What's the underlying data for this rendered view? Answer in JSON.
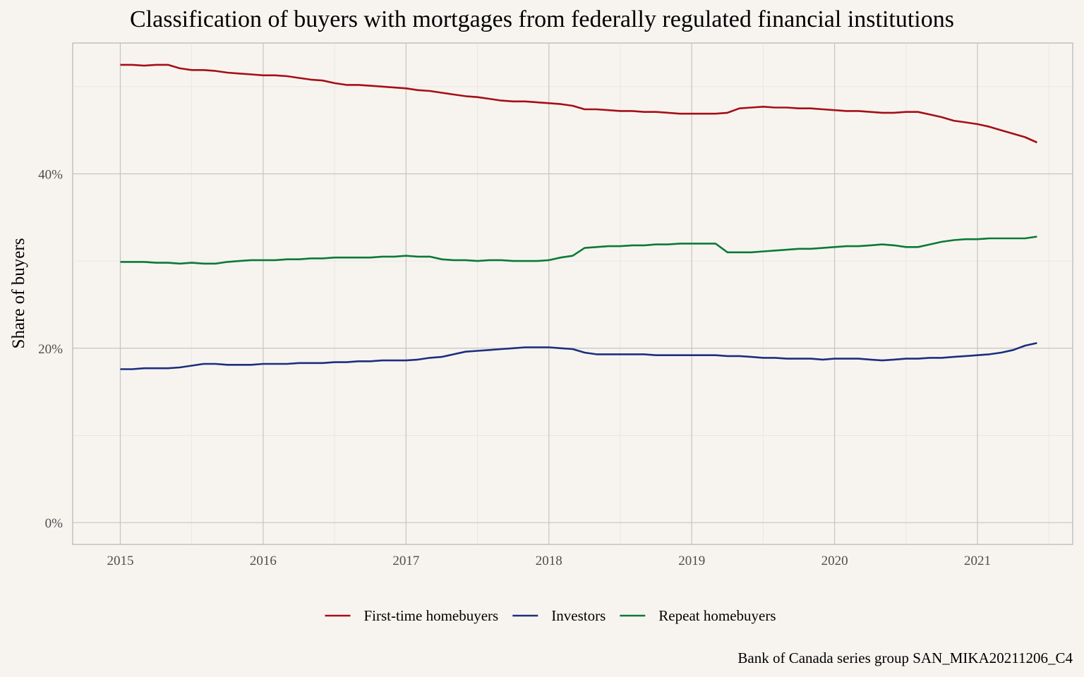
{
  "chart_data": {
    "type": "line",
    "title": "Classification of buyers with mortgages from federally regulated financial institutions",
    "xlabel": "",
    "ylabel": "Share of buyers",
    "caption": "Bank of Canada series group SAN_MIKA20211206_C4",
    "x_ticks": [
      "2015",
      "2016",
      "2017",
      "2018",
      "2019",
      "2020",
      "2021"
    ],
    "y_ticks": [
      "0%",
      "20%",
      "40%"
    ],
    "xlim": [
      "2014-09",
      "2021-09"
    ],
    "ylim": [
      -2.5,
      55.0
    ],
    "legend_position": "bottom",
    "grid": true,
    "x": [
      "2015-01",
      "2015-02",
      "2015-03",
      "2015-04",
      "2015-05",
      "2015-06",
      "2015-07",
      "2015-08",
      "2015-09",
      "2015-10",
      "2015-11",
      "2015-12",
      "2016-01",
      "2016-02",
      "2016-03",
      "2016-04",
      "2016-05",
      "2016-06",
      "2016-07",
      "2016-08",
      "2016-09",
      "2016-10",
      "2016-11",
      "2016-12",
      "2017-01",
      "2017-02",
      "2017-03",
      "2017-04",
      "2017-05",
      "2017-06",
      "2017-07",
      "2017-08",
      "2017-09",
      "2017-10",
      "2017-11",
      "2017-12",
      "2018-01",
      "2018-02",
      "2018-03",
      "2018-04",
      "2018-05",
      "2018-06",
      "2018-07",
      "2018-08",
      "2018-09",
      "2018-10",
      "2018-11",
      "2018-12",
      "2019-01",
      "2019-02",
      "2019-03",
      "2019-04",
      "2019-05",
      "2019-06",
      "2019-07",
      "2019-08",
      "2019-09",
      "2019-10",
      "2019-11",
      "2019-12",
      "2020-01",
      "2020-02",
      "2020-03",
      "2020-04",
      "2020-05",
      "2020-06",
      "2020-07",
      "2020-08",
      "2020-09",
      "2020-10",
      "2020-11",
      "2020-12",
      "2021-01",
      "2021-02",
      "2021-03",
      "2021-04",
      "2021-05",
      "2021-06"
    ],
    "series": [
      {
        "name": "First-time homebuyers",
        "color": "#a50f15",
        "values": [
          52.5,
          52.5,
          52.4,
          52.5,
          52.5,
          52.1,
          51.9,
          51.9,
          51.8,
          51.6,
          51.5,
          51.4,
          51.3,
          51.3,
          51.2,
          51.0,
          50.8,
          50.7,
          50.4,
          50.2,
          50.2,
          50.1,
          50.0,
          49.9,
          49.8,
          49.6,
          49.5,
          49.3,
          49.1,
          48.9,
          48.8,
          48.6,
          48.4,
          48.3,
          48.3,
          48.2,
          48.1,
          48.0,
          47.8,
          47.4,
          47.4,
          47.3,
          47.2,
          47.2,
          47.1,
          47.1,
          47.0,
          46.9,
          46.9,
          46.9,
          46.9,
          47.0,
          47.5,
          47.6,
          47.7,
          47.6,
          47.6,
          47.5,
          47.5,
          47.4,
          47.3,
          47.2,
          47.2,
          47.1,
          47.0,
          47.0,
          47.1,
          47.1,
          46.8,
          46.5,
          46.1,
          45.9,
          45.7,
          45.4,
          45.0,
          44.6,
          44.2,
          43.6
        ]
      },
      {
        "name": "Investors",
        "color": "#1b2f7e",
        "values": [
          17.6,
          17.6,
          17.7,
          17.7,
          17.7,
          17.8,
          18.0,
          18.2,
          18.2,
          18.1,
          18.1,
          18.1,
          18.2,
          18.2,
          18.2,
          18.3,
          18.3,
          18.3,
          18.4,
          18.4,
          18.5,
          18.5,
          18.6,
          18.6,
          18.6,
          18.7,
          18.9,
          19.0,
          19.3,
          19.6,
          19.7,
          19.8,
          19.9,
          20.0,
          20.1,
          20.1,
          20.1,
          20.0,
          19.9,
          19.5,
          19.3,
          19.3,
          19.3,
          19.3,
          19.3,
          19.2,
          19.2,
          19.2,
          19.2,
          19.2,
          19.2,
          19.1,
          19.1,
          19.0,
          18.9,
          18.9,
          18.8,
          18.8,
          18.8,
          18.7,
          18.8,
          18.8,
          18.8,
          18.7,
          18.6,
          18.7,
          18.8,
          18.8,
          18.9,
          18.9,
          19.0,
          19.1,
          19.2,
          19.3,
          19.5,
          19.8,
          20.3,
          20.6
        ]
      },
      {
        "name": "Repeat homebuyers",
        "color": "#0a7a35",
        "values": [
          29.9,
          29.9,
          29.9,
          29.8,
          29.8,
          29.7,
          29.8,
          29.7,
          29.7,
          29.9,
          30.0,
          30.1,
          30.1,
          30.1,
          30.2,
          30.2,
          30.3,
          30.3,
          30.4,
          30.4,
          30.4,
          30.4,
          30.5,
          30.5,
          30.6,
          30.5,
          30.5,
          30.2,
          30.1,
          30.1,
          30.0,
          30.1,
          30.1,
          30.0,
          30.0,
          30.0,
          30.1,
          30.4,
          30.6,
          31.5,
          31.6,
          31.7,
          31.7,
          31.8,
          31.8,
          31.9,
          31.9,
          32.0,
          32.0,
          32.0,
          32.0,
          31.0,
          31.0,
          31.0,
          31.1,
          31.2,
          31.3,
          31.4,
          31.4,
          31.5,
          31.6,
          31.7,
          31.7,
          31.8,
          31.9,
          31.8,
          31.6,
          31.6,
          31.9,
          32.2,
          32.4,
          32.5,
          32.5,
          32.6,
          32.6,
          32.6,
          32.6,
          32.8
        ]
      }
    ]
  }
}
